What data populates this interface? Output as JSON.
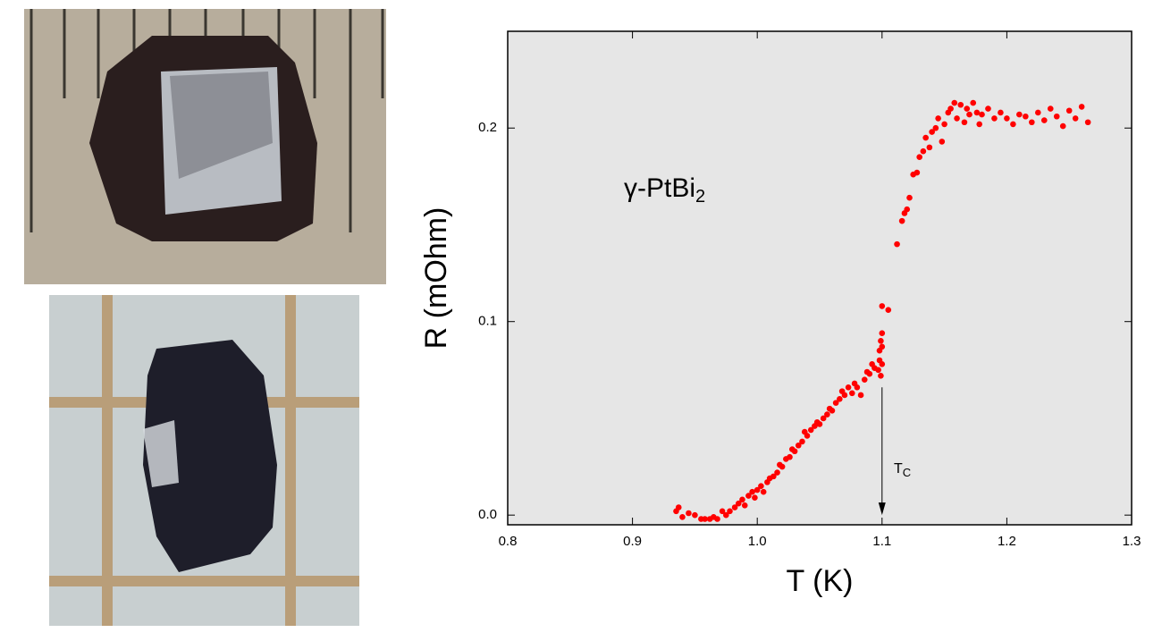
{
  "chart_data": {
    "type": "scatter",
    "xlabel": "T (K)",
    "ylabel": "R (mOhm)",
    "annotations": [
      {
        "text": "γ-PtBi",
        "subscript": "2"
      },
      {
        "text": "T",
        "subscript": "C"
      }
    ],
    "arrow": {
      "x": 1.1,
      "from": 0.066,
      "to": 0
    },
    "color": "#ff0000",
    "background": "#e6e6e6",
    "xlim": [
      0.8,
      1.3
    ],
    "ylim": [
      -0.005,
      0.25
    ],
    "xticks": [
      0.8,
      0.9,
      {
        "value": 1,
        "label": "1.0"
      },
      1.1,
      1.2,
      1.3
    ],
    "yticks": [
      {
        "value": 0,
        "label": "0.0"
      },
      0.1,
      0.2
    ],
    "x": [
      0.935,
      0.937,
      0.94,
      0.945,
      0.95,
      0.955,
      0.958,
      0.962,
      0.965,
      0.968,
      0.972,
      0.975,
      0.978,
      0.982,
      0.985,
      0.988,
      0.99,
      0.993,
      0.996,
      0.998,
      1.0,
      1.003,
      1.005,
      1.008,
      1.01,
      1.013,
      1.016,
      1.018,
      1.02,
      1.023,
      1.026,
      1.028,
      1.03,
      1.033,
      1.036,
      1.038,
      1.04,
      1.043,
      1.046,
      1.048,
      1.05,
      1.053,
      1.056,
      1.058,
      1.06,
      1.063,
      1.066,
      1.068,
      1.07,
      1.073,
      1.076,
      1.078,
      1.08,
      1.083,
      1.086,
      1.088,
      1.09,
      1.092,
      1.094,
      1.097,
      1.098,
      1.098,
      1.099,
      1.099,
      1.1,
      1.1,
      1.1,
      1.1,
      1.105,
      1.112,
      1.116,
      1.118,
      1.12,
      1.122,
      1.125,
      1.128,
      1.13,
      1.133,
      1.135,
      1.138,
      1.14,
      1.143,
      1.145,
      1.148,
      1.15,
      1.153,
      1.155,
      1.158,
      1.16,
      1.163,
      1.166,
      1.168,
      1.17,
      1.173,
      1.176,
      1.178,
      1.18,
      1.185,
      1.19,
      1.195,
      1.2,
      1.205,
      1.21,
      1.215,
      1.22,
      1.225,
      1.23,
      1.235,
      1.24,
      1.245,
      1.25,
      1.255,
      1.26,
      1.265
    ],
    "values": [
      0.002,
      0.004,
      -0.001,
      0.001,
      0.0,
      -0.002,
      -0.002,
      -0.002,
      -0.001,
      -0.002,
      0.002,
      0.0,
      0.002,
      0.004,
      0.006,
      0.008,
      0.005,
      0.01,
      0.012,
      0.009,
      0.013,
      0.015,
      0.012,
      0.017,
      0.019,
      0.02,
      0.022,
      0.026,
      0.025,
      0.029,
      0.03,
      0.034,
      0.033,
      0.036,
      0.038,
      0.043,
      0.041,
      0.044,
      0.046,
      0.048,
      0.047,
      0.05,
      0.052,
      0.055,
      0.054,
      0.058,
      0.06,
      0.064,
      0.062,
      0.066,
      0.063,
      0.068,
      0.066,
      0.062,
      0.07,
      0.074,
      0.073,
      0.078,
      0.076,
      0.075,
      0.08,
      0.085,
      0.09,
      0.072,
      0.094,
      0.087,
      0.078,
      0.108,
      0.106,
      0.14,
      0.152,
      0.156,
      0.158,
      0.164,
      0.176,
      0.177,
      0.185,
      0.188,
      0.195,
      0.19,
      0.198,
      0.2,
      0.205,
      0.193,
      0.202,
      0.208,
      0.21,
      0.213,
      0.205,
      0.212,
      0.203,
      0.21,
      0.207,
      0.213,
      0.208,
      0.202,
      0.207,
      0.21,
      0.205,
      0.208,
      0.205,
      0.202,
      0.207,
      0.206,
      0.203,
      0.208,
      0.204,
      0.21,
      0.206,
      0.201,
      0.209,
      0.205,
      0.211,
      0.203
    ]
  }
}
